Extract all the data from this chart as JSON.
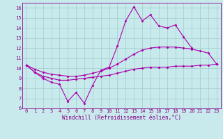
{
  "x": [
    0,
    1,
    2,
    3,
    4,
    5,
    6,
    7,
    8,
    9,
    10,
    11,
    12,
    13,
    14,
    15,
    16,
    17,
    18,
    19,
    20,
    21,
    22,
    23
  ],
  "line1": [
    10.3,
    9.6,
    9.0,
    8.6,
    8.4,
    6.7,
    7.6,
    6.5,
    8.3,
    9.8,
    10.1,
    12.2,
    14.7,
    16.1,
    14.7,
    15.3,
    14.2,
    14.0,
    14.3,
    13.1,
    12.0,
    null,
    null,
    10.4
  ],
  "line2": [
    10.3,
    9.6,
    9.2,
    9.0,
    8.8,
    8.8,
    8.9,
    9.0,
    9.1,
    9.2,
    9.3,
    9.5,
    9.7,
    9.9,
    10.0,
    10.1,
    10.1,
    10.1,
    10.2,
    10.2,
    10.2,
    10.3,
    10.3,
    10.4
  ],
  "line3": [
    10.3,
    9.9,
    9.6,
    9.4,
    9.3,
    9.2,
    9.2,
    9.3,
    9.5,
    9.7,
    10.0,
    10.4,
    10.9,
    11.4,
    11.8,
    12.0,
    12.1,
    12.1,
    12.1,
    12.0,
    11.9,
    11.7,
    11.5,
    10.4
  ],
  "line_color": "#aa00aa",
  "bg_color": "#c8eaec",
  "grid_color": "#a0cccc",
  "text_color": "#880088",
  "xlim": [
    -0.5,
    23.5
  ],
  "ylim": [
    6,
    16.5
  ],
  "yticks": [
    6,
    7,
    8,
    9,
    10,
    11,
    12,
    13,
    14,
    15,
    16
  ],
  "xlabel": "Windchill (Refroidissement éolien,°C)",
  "tick_fontsize": 5.0,
  "label_fontsize": 5.5,
  "linewidth": 0.8,
  "markersize": 2.0
}
